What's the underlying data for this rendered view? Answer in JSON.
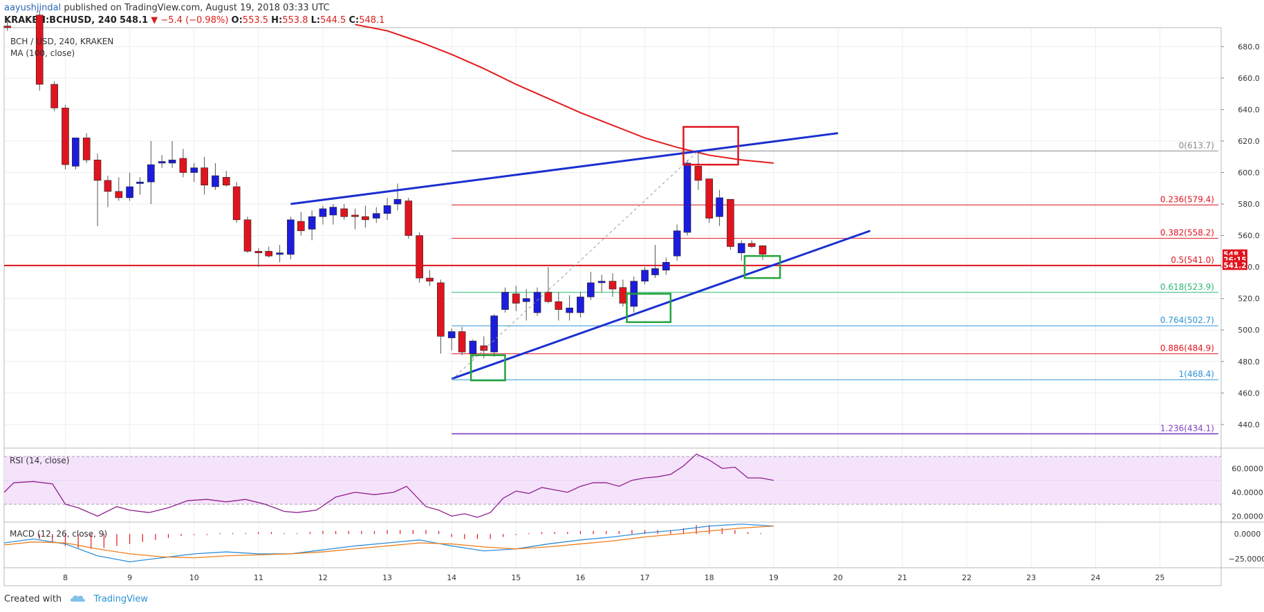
{
  "header": {
    "author": "aayushjindal",
    "published_text": "published on TradingView.com, August 19, 2018 03:33 UTC",
    "symbol": "KRAKEN:BCHUSD, 240",
    "last": "548.1",
    "change": "▼ −5.4 (−0.98%)",
    "o_label": "O:",
    "o_value": "553.5",
    "h_label": "H:",
    "h_value": "553.8",
    "l_label": "L:",
    "l_value": "544.5",
    "c_label": "C:",
    "c_value": "548.1"
  },
  "footer": {
    "created_with": "Created with",
    "brand": "TradingView"
  },
  "colors": {
    "up": "#1c1cdc",
    "down": "#e0141e",
    "ma": "#e31a1c",
    "trend": "#1a2fd0",
    "green_box": "#22a33a",
    "red_box": "#e0141e",
    "grid": "#eeeeee",
    "rsi_line": "#8e1d8e",
    "rsi_band": "#f4e3fb",
    "macd_line": "#2f8fd8",
    "signal_line": "#f07d1a",
    "hist_pos": "#e0141e",
    "hist_neg": "#e0141e"
  },
  "chart_data": {
    "type": "candlestick",
    "title": "BCH / USD, 240, KRAKEN",
    "indicator_label": "MA (100, close)",
    "x_dates": [
      8,
      9,
      10,
      11,
      12,
      13,
      14,
      15,
      16,
      17,
      18,
      19,
      20,
      21,
      22,
      23,
      24,
      25
    ],
    "x_tick_labels": [
      "8",
      "9",
      "10",
      "11",
      "12",
      "13",
      "14",
      "15",
      "16",
      "17",
      "18",
      "19",
      "20",
      "21",
      "22",
      "23",
      "24",
      "25"
    ],
    "x_range": [
      7.05,
      25.95
    ],
    "y_range": [
      425,
      692
    ],
    "y_ticks": [
      440,
      460,
      480,
      500,
      520,
      540,
      560,
      580,
      600,
      620,
      640,
      660,
      680
    ],
    "y_tick_labels": [
      "440.0",
      "460.0",
      "480.0",
      "500.0",
      "520.0",
      "540.0",
      "560.0",
      "580.0",
      "600.0",
      "620.0",
      "640.0",
      "660.0",
      "680.0"
    ],
    "candles": [
      {
        "t": 7.1,
        "o": 693,
        "h": 697,
        "l": 690,
        "c": 692
      },
      {
        "t": 7.6,
        "o": 700,
        "h": 703,
        "l": 652,
        "c": 656
      },
      {
        "t": 7.83,
        "o": 656,
        "h": 658,
        "l": 639,
        "c": 641
      },
      {
        "t": 8.0,
        "o": 641,
        "h": 643,
        "l": 602,
        "c": 605
      },
      {
        "t": 8.16,
        "o": 604,
        "h": 622,
        "l": 602,
        "c": 622
      },
      {
        "t": 8.33,
        "o": 622,
        "h": 625,
        "l": 606,
        "c": 608
      },
      {
        "t": 8.5,
        "o": 608,
        "h": 612,
        "l": 566,
        "c": 595
      },
      {
        "t": 8.66,
        "o": 595,
        "h": 598,
        "l": 578,
        "c": 588
      },
      {
        "t": 8.83,
        "o": 588,
        "h": 597,
        "l": 582,
        "c": 584
      },
      {
        "t": 9.0,
        "o": 584,
        "h": 600,
        "l": 582,
        "c": 591
      },
      {
        "t": 9.16,
        "o": 593,
        "h": 597,
        "l": 586,
        "c": 594
      },
      {
        "t": 9.33,
        "o": 594,
        "h": 620,
        "l": 580,
        "c": 605
      },
      {
        "t": 9.5,
        "o": 606,
        "h": 611,
        "l": 603,
        "c": 607
      },
      {
        "t": 9.66,
        "o": 606,
        "h": 620,
        "l": 603,
        "c": 608
      },
      {
        "t": 9.83,
        "o": 609,
        "h": 615,
        "l": 597,
        "c": 600
      },
      {
        "t": 10.0,
        "o": 600,
        "h": 606,
        "l": 594,
        "c": 603
      },
      {
        "t": 10.16,
        "o": 603,
        "h": 610,
        "l": 586,
        "c": 592
      },
      {
        "t": 10.33,
        "o": 591,
        "h": 606,
        "l": 589,
        "c": 598
      },
      {
        "t": 10.5,
        "o": 597,
        "h": 601,
        "l": 591,
        "c": 592
      },
      {
        "t": 10.66,
        "o": 591,
        "h": 594,
        "l": 568,
        "c": 570
      },
      {
        "t": 10.83,
        "o": 570,
        "h": 572,
        "l": 549,
        "c": 550
      },
      {
        "t": 11.0,
        "o": 550,
        "h": 552,
        "l": 540,
        "c": 549
      },
      {
        "t": 11.16,
        "o": 550,
        "h": 553,
        "l": 546,
        "c": 547
      },
      {
        "t": 11.33,
        "o": 548,
        "h": 554,
        "l": 543,
        "c": 549
      },
      {
        "t": 11.5,
        "o": 548,
        "h": 572,
        "l": 545,
        "c": 570
      },
      {
        "t": 11.66,
        "o": 569,
        "h": 575,
        "l": 560,
        "c": 563
      },
      {
        "t": 11.83,
        "o": 564,
        "h": 576,
        "l": 557,
        "c": 572
      },
      {
        "t": 12.0,
        "o": 572,
        "h": 579,
        "l": 567,
        "c": 577
      },
      {
        "t": 12.16,
        "o": 573,
        "h": 580,
        "l": 567,
        "c": 578
      },
      {
        "t": 12.33,
        "o": 577,
        "h": 580,
        "l": 570,
        "c": 572
      },
      {
        "t": 12.5,
        "o": 573,
        "h": 577,
        "l": 564,
        "c": 572
      },
      {
        "t": 12.66,
        "o": 572,
        "h": 579,
        "l": 565,
        "c": 570
      },
      {
        "t": 12.83,
        "o": 571,
        "h": 578,
        "l": 568,
        "c": 574
      },
      {
        "t": 13.0,
        "o": 574,
        "h": 584,
        "l": 570,
        "c": 579
      },
      {
        "t": 13.16,
        "o": 580,
        "h": 593,
        "l": 576,
        "c": 583
      },
      {
        "t": 13.33,
        "o": 582,
        "h": 584,
        "l": 558,
        "c": 560
      },
      {
        "t": 13.5,
        "o": 560,
        "h": 562,
        "l": 530,
        "c": 533
      },
      {
        "t": 13.66,
        "o": 533,
        "h": 538,
        "l": 528,
        "c": 531
      },
      {
        "t": 13.83,
        "o": 530,
        "h": 532,
        "l": 485,
        "c": 496
      },
      {
        "t": 14.0,
        "o": 495,
        "h": 501,
        "l": 487,
        "c": 499
      },
      {
        "t": 14.16,
        "o": 499,
        "h": 502,
        "l": 484,
        "c": 486
      },
      {
        "t": 14.33,
        "o": 485,
        "h": 494,
        "l": 482,
        "c": 493
      },
      {
        "t": 14.5,
        "o": 490,
        "h": 496,
        "l": 482,
        "c": 487
      },
      {
        "t": 14.66,
        "o": 486,
        "h": 510,
        "l": 483,
        "c": 509
      },
      {
        "t": 14.83,
        "o": 513,
        "h": 527,
        "l": 511,
        "c": 524
      },
      {
        "t": 15.0,
        "o": 523,
        "h": 528,
        "l": 512,
        "c": 517
      },
      {
        "t": 15.16,
        "o": 518,
        "h": 526,
        "l": 506,
        "c": 520
      },
      {
        "t": 15.33,
        "o": 511,
        "h": 527,
        "l": 509,
        "c": 524
      },
      {
        "t": 15.5,
        "o": 524,
        "h": 540,
        "l": 517,
        "c": 518
      },
      {
        "t": 15.66,
        "o": 518,
        "h": 524,
        "l": 506,
        "c": 513
      },
      {
        "t": 15.83,
        "o": 511,
        "h": 522,
        "l": 506,
        "c": 514
      },
      {
        "t": 16.0,
        "o": 511,
        "h": 524,
        "l": 508,
        "c": 521
      },
      {
        "t": 16.16,
        "o": 521,
        "h": 537,
        "l": 519,
        "c": 530
      },
      {
        "t": 16.33,
        "o": 530,
        "h": 535,
        "l": 524,
        "c": 531
      },
      {
        "t": 16.5,
        "o": 531,
        "h": 536,
        "l": 521,
        "c": 526
      },
      {
        "t": 16.66,
        "o": 527,
        "h": 532,
        "l": 515,
        "c": 517
      },
      {
        "t": 16.83,
        "o": 515,
        "h": 534,
        "l": 511,
        "c": 531
      },
      {
        "t": 17.0,
        "o": 531,
        "h": 540,
        "l": 529,
        "c": 538
      },
      {
        "t": 17.16,
        "o": 535,
        "h": 554,
        "l": 533,
        "c": 539
      },
      {
        "t": 17.33,
        "o": 538,
        "h": 546,
        "l": 535,
        "c": 543
      },
      {
        "t": 17.5,
        "o": 547,
        "h": 567,
        "l": 544,
        "c": 563
      },
      {
        "t": 17.66,
        "o": 562,
        "h": 608,
        "l": 560,
        "c": 606
      },
      {
        "t": 17.83,
        "o": 604,
        "h": 613,
        "l": 589,
        "c": 595
      },
      {
        "t": 18.0,
        "o": 596,
        "h": 596,
        "l": 568,
        "c": 571
      },
      {
        "t": 18.16,
        "o": 572,
        "h": 589,
        "l": 566,
        "c": 584
      },
      {
        "t": 18.33,
        "o": 583,
        "h": 583,
        "l": 551,
        "c": 553
      },
      {
        "t": 18.5,
        "o": 549,
        "h": 557,
        "l": 544,
        "c": 555
      },
      {
        "t": 18.66,
        "o": 555,
        "h": 557,
        "l": 552,
        "c": 553
      },
      {
        "t": 18.83,
        "o": 553.5,
        "h": 553.8,
        "l": 544.5,
        "c": 548.1
      }
    ],
    "moving_average": {
      "name": "MA (100, close)",
      "t": [
        12.5,
        13,
        13.5,
        14,
        14.5,
        15,
        15.5,
        16,
        16.5,
        17,
        17.5,
        18,
        18.5,
        19
      ],
      "v": [
        694,
        690,
        683,
        675,
        666,
        656,
        647,
        638,
        630,
        622,
        616,
        611,
        608,
        606
      ]
    },
    "fibonacci": [
      {
        "label": "0",
        "value": 613.7,
        "text": "0(613.7)",
        "color": "#888888"
      },
      {
        "label": "0.236",
        "value": 579.4,
        "text": "0.236(579.4)",
        "color": "#e0141e"
      },
      {
        "label": "0.382",
        "value": 558.2,
        "text": "0.382(558.2)",
        "color": "#e0141e"
      },
      {
        "label": "0.5",
        "value": 541.0,
        "text": "0.5(541.0)",
        "color": "#e0141e"
      },
      {
        "label": "0.618",
        "value": 523.9,
        "text": "0.618(523.9)",
        "color": "#2bb673"
      },
      {
        "label": "0.764",
        "value": 502.7,
        "text": "0.764(502.7)",
        "color": "#2a93d5"
      },
      {
        "label": "0.886",
        "value": 484.9,
        "text": "0.886(484.9)",
        "color": "#e0141e"
      },
      {
        "label": "1",
        "value": 468.4,
        "text": "1(468.4)",
        "color": "#2a93d5"
      },
      {
        "label": "1.236",
        "value": 434.1,
        "text": "1.236(434.1)",
        "color": "#7f3fbf"
      }
    ],
    "fib_start_t": 14.0,
    "horizontal_level": 541.0,
    "trendlines": [
      {
        "name": "upper-trendline",
        "t1": 11.5,
        "v1": 580,
        "t2": 20.0,
        "v2": 625
      },
      {
        "name": "support-trendline",
        "t1": 14.0,
        "v1": 469,
        "t2": 20.5,
        "v2": 563
      },
      {
        "name": "fib-swing-dashed",
        "t1": 14.0,
        "v1": 468.4,
        "t2": 17.83,
        "v2": 613.7
      }
    ],
    "boxes": [
      {
        "name": "red-box-resistance",
        "t1": 17.6,
        "t2": 18.45,
        "v1": 605,
        "v2": 629,
        "kind": "red"
      },
      {
        "name": "green-box-1",
        "t1": 14.3,
        "t2": 14.83,
        "v1": 468,
        "v2": 484,
        "kind": "green"
      },
      {
        "name": "green-box-2",
        "t1": 16.72,
        "t2": 17.4,
        "v1": 505,
        "v2": 523,
        "kind": "green"
      },
      {
        "name": "green-box-3",
        "t1": 18.55,
        "t2": 19.1,
        "v1": 533,
        "v2": 547,
        "kind": "green"
      }
    ],
    "price_badges": [
      {
        "name": "last-price-badge",
        "text": "548.1",
        "value": 548.1
      },
      {
        "name": "countdown-badge",
        "text": "26:15",
        "value": 544.6
      },
      {
        "name": "level-badge",
        "text": "541.2",
        "value": 541.2
      }
    ],
    "rsi": {
      "label": "RSI (14, close)",
      "y_range": [
        15,
        77
      ],
      "band": [
        30,
        70
      ],
      "mid": 50,
      "y_ticks": [
        20,
        40,
        60
      ],
      "y_tick_labels": [
        "20.0000",
        "40.0000",
        "60.0000"
      ],
      "t": [
        7.05,
        7.2,
        7.5,
        7.8,
        8.0,
        8.2,
        8.5,
        8.8,
        9.0,
        9.3,
        9.6,
        9.9,
        10.2,
        10.5,
        10.8,
        11.1,
        11.4,
        11.6,
        11.9,
        12.2,
        12.5,
        12.8,
        13.1,
        13.3,
        13.6,
        13.8,
        14.0,
        14.2,
        14.4,
        14.6,
        14.8,
        15.0,
        15.2,
        15.4,
        15.6,
        15.8,
        16.0,
        16.2,
        16.4,
        16.6,
        16.8,
        17.0,
        17.2,
        17.4,
        17.6,
        17.8,
        18.0,
        18.2,
        18.4,
        18.6,
        18.8,
        19.0
      ],
      "v": [
        40,
        48,
        49,
        47,
        30,
        27,
        20,
        28,
        25,
        23,
        27,
        33,
        34,
        32,
        34,
        30,
        24,
        23,
        25,
        36,
        40,
        38,
        40,
        45,
        28,
        25,
        20,
        22,
        19,
        23,
        35,
        41,
        39,
        44,
        42,
        40,
        45,
        48,
        48,
        45,
        50,
        52,
        53,
        55,
        62,
        72,
        67,
        60,
        61,
        52,
        52,
        50
      ]
    },
    "macd": {
      "label": "MACD (12, 26, close, 9)",
      "y_range": [
        -34,
        12
      ],
      "y_ticks": [
        0,
        -25
      ],
      "y_tick_labels": [
        "0.0000",
        "−25.0000"
      ],
      "t": [
        7.05,
        7.5,
        8.0,
        8.5,
        9.0,
        9.5,
        10.0,
        10.5,
        11.0,
        11.5,
        12.0,
        12.5,
        13.0,
        13.5,
        14.0,
        14.5,
        15.0,
        15.5,
        16.0,
        16.5,
        17.0,
        17.5,
        18.0,
        18.5,
        19.0
      ],
      "macd": [
        -9,
        -5,
        -10,
        -22,
        -28,
        -24,
        -20,
        -18,
        -20,
        -20,
        -16,
        -12,
        -9,
        -6,
        -12,
        -17,
        -15,
        -10,
        -6,
        -3,
        1,
        4,
        8,
        10,
        8
      ],
      "signal": [
        -11,
        -8,
        -9,
        -15,
        -20,
        -23,
        -24,
        -22,
        -21,
        -20,
        -18,
        -15,
        -12,
        -9,
        -10,
        -13,
        -15,
        -13,
        -10,
        -7,
        -3,
        0,
        3,
        6,
        8
      ],
      "hist_t": [
        7.6,
        7.8,
        8.0,
        8.2,
        8.4,
        8.6,
        8.8,
        9.0,
        9.2,
        9.4,
        9.6,
        9.8,
        10.0,
        10.2,
        10.4,
        10.6,
        10.8,
        11.0,
        11.2,
        11.4,
        11.6,
        11.8,
        12.0,
        12.2,
        12.4,
        12.6,
        12.8,
        13.0,
        13.2,
        13.4,
        13.6,
        13.8,
        14.0,
        14.2,
        14.4,
        14.6,
        14.8,
        15.0,
        15.2,
        15.4,
        15.6,
        15.8,
        16.0,
        16.2,
        16.4,
        16.6,
        16.8,
        17.0,
        17.2,
        17.4,
        17.6,
        17.8,
        18.0,
        18.2,
        18.4,
        18.6,
        18.8
      ],
      "hist": [
        -5,
        -9,
        -12,
        -14,
        -15,
        -14,
        -12,
        -10,
        -8,
        -6,
        -4,
        -2,
        -1,
        -1,
        1,
        1,
        1,
        2,
        2,
        1,
        1,
        2,
        3,
        3,
        3,
        3,
        3,
        4,
        4,
        4,
        4,
        3,
        -3,
        -5,
        -5,
        -5,
        -3,
        -1,
        1,
        2,
        2,
        2,
        3,
        3,
        3,
        3,
        4,
        4,
        4,
        4,
        6,
        9,
        9,
        6,
        4,
        2,
        1
      ]
    }
  }
}
